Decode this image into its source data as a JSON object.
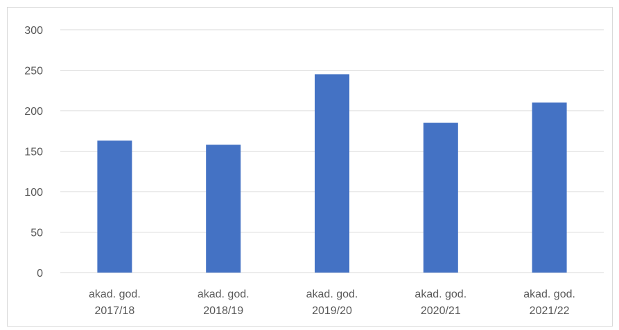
{
  "chart_data": {
    "type": "bar",
    "categories": [
      [
        "akad. god.",
        "2017/18"
      ],
      [
        "akad. god.",
        "2018/19"
      ],
      [
        "akad. god.",
        "2019/20"
      ],
      [
        "akad. god.",
        "2020/21"
      ],
      [
        "akad. god.",
        "2021/22"
      ]
    ],
    "values": [
      163,
      158,
      245,
      185,
      210
    ],
    "ylim": [
      0,
      300
    ],
    "yticks": [
      "0",
      "50",
      "100",
      "150",
      "200",
      "250",
      "300"
    ],
    "title": "",
    "xlabel": "",
    "ylabel": "",
    "grid": true,
    "legend": "none",
    "bar_color": "#4472c4",
    "grid_color": "#d9d9d9"
  }
}
